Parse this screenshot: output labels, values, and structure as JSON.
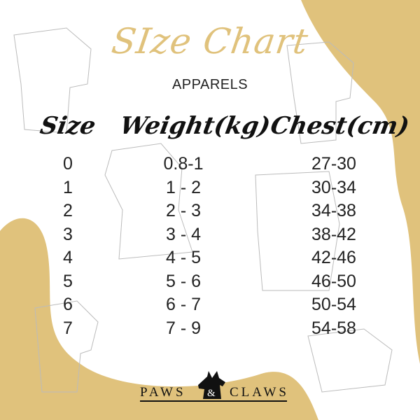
{
  "title": "SIze Chart",
  "subtitle": "APPARELS",
  "colors": {
    "accent": "#e0c27c",
    "text": "#222222"
  },
  "table": {
    "headers": [
      "Size",
      "Weight(kg)",
      "Chest(cm)"
    ],
    "rows": [
      [
        "0",
        "0.8-1",
        "27-30"
      ],
      [
        "1",
        "1 - 2",
        "30-34"
      ],
      [
        "2",
        "2 - 3",
        "34-38"
      ],
      [
        "3",
        "3 - 4",
        "38-42"
      ],
      [
        "4",
        "4 - 5",
        "42-46"
      ],
      [
        "5",
        "5 - 6",
        "46-50"
      ],
      [
        "6",
        "6 - 7",
        "50-54"
      ],
      [
        "7",
        "7 - 9",
        "54-58"
      ]
    ]
  },
  "brand": {
    "left": "PAWS",
    "right": "CLAWS",
    "amp": "&",
    "logo": "scottie-dog-logo"
  }
}
